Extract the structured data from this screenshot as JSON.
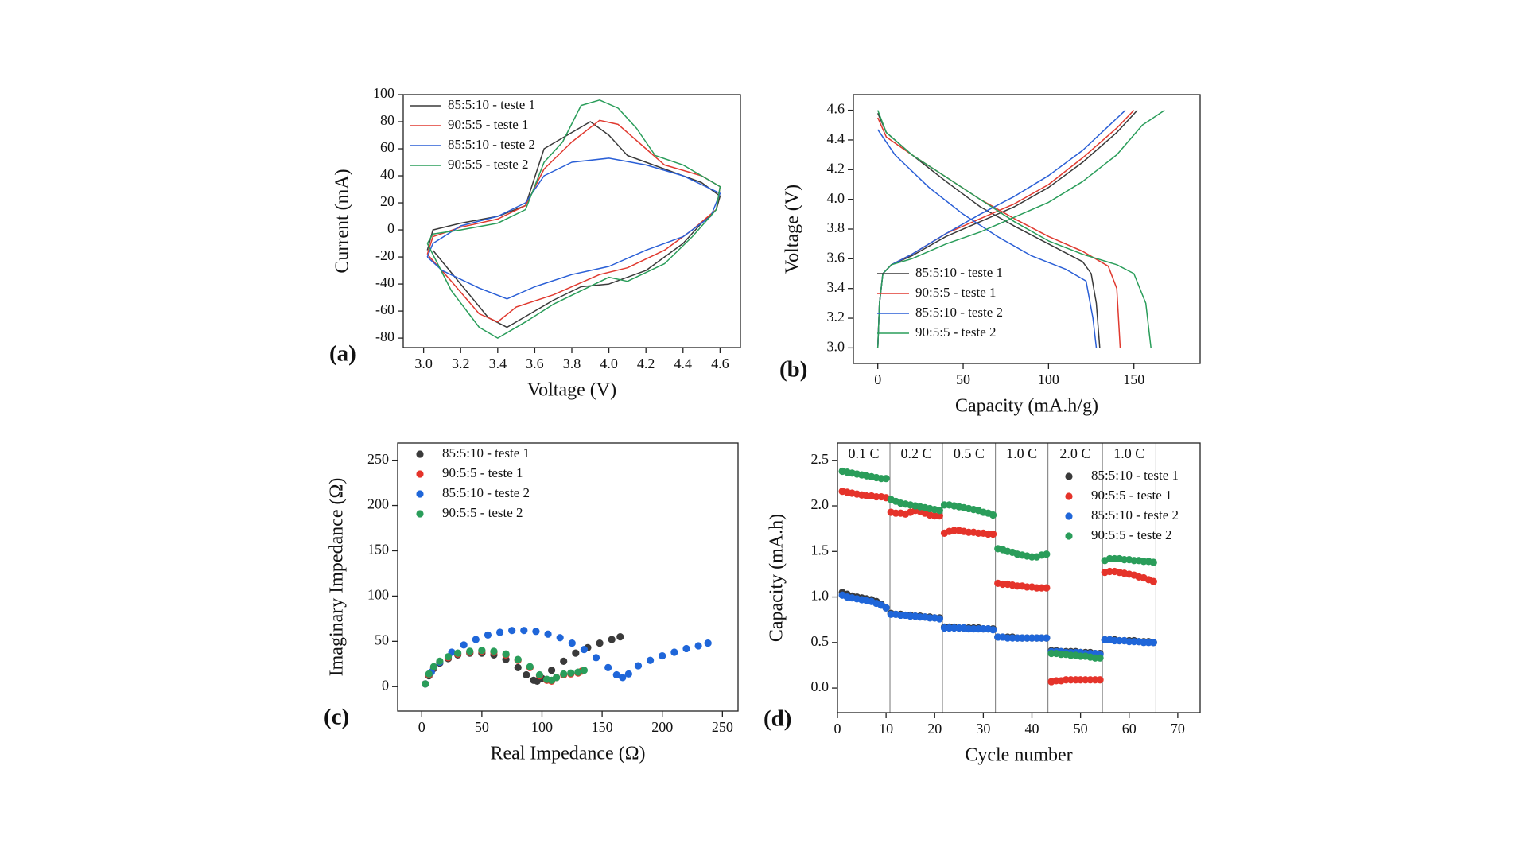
{
  "chart_data": [
    {
      "type": "line",
      "panel_label": "(a)",
      "x_label": "Voltage (V)",
      "y_label": "Current (mA)",
      "xlim": [
        2.89,
        4.71
      ],
      "ylim": [
        -87,
        100
      ],
      "xticks": [
        {
          "value": 3,
          "label": "3.0"
        },
        3.2,
        3.4,
        3.6,
        3.8,
        {
          "value": 4,
          "label": "4.0"
        },
        4.2,
        4.4,
        4.6
      ],
      "yticks": [
        -80,
        -60,
        -40,
        -20,
        0,
        20,
        40,
        60,
        80,
        100
      ],
      "legend": "upper left",
      "series": [
        {
          "name": "85:5:10 - teste 1",
          "color": "#3a3a3a",
          "x": [
            3.02,
            3.05,
            3.2,
            3.4,
            3.55,
            3.65,
            3.75,
            3.9,
            4.0,
            4.1,
            4.3,
            4.5,
            4.6,
            4.58,
            4.5,
            4.4,
            4.2,
            4.0,
            3.85,
            3.7,
            3.6,
            3.45,
            3.35,
            3.2,
            3.05
          ],
          "values": [
            -15,
            0,
            5,
            10,
            18,
            60,
            68,
            80,
            70,
            55,
            45,
            35,
            25,
            15,
            5,
            -10,
            -30,
            -40,
            -42,
            -52,
            -60,
            -72,
            -65,
            -40,
            -15
          ]
        },
        {
          "name": "90:5:5 - teste 1",
          "color": "#e03a30",
          "x": [
            3.02,
            3.05,
            3.2,
            3.4,
            3.55,
            3.65,
            3.8,
            3.95,
            4.05,
            4.2,
            4.3,
            4.5,
            4.6,
            4.58,
            4.45,
            4.3,
            4.1,
            3.95,
            3.7,
            3.5,
            3.4,
            3.3,
            3.15,
            3.02
          ],
          "values": [
            -18,
            -5,
            2,
            8,
            18,
            45,
            65,
            81,
            78,
            60,
            48,
            40,
            32,
            15,
            0,
            -15,
            -28,
            -33,
            -48,
            -57,
            -68,
            -62,
            -38,
            -18
          ]
        },
        {
          "name": "85:5:10 - teste 2",
          "color": "#2a5fd6",
          "x": [
            3.02,
            3.05,
            3.2,
            3.4,
            3.55,
            3.65,
            3.8,
            4.0,
            4.2,
            4.4,
            4.6,
            4.55,
            4.4,
            4.2,
            4.0,
            3.8,
            3.6,
            3.45,
            3.3,
            3.1,
            3.02
          ],
          "values": [
            -20,
            -10,
            3,
            10,
            20,
            40,
            50,
            53,
            48,
            40,
            27,
            10,
            -5,
            -15,
            -27,
            -33,
            -42,
            -51,
            -43,
            -30,
            -20
          ]
        },
        {
          "name": "90:5:5 - teste 2",
          "color": "#2a9d5a",
          "x": [
            3.02,
            3.05,
            3.2,
            3.4,
            3.55,
            3.65,
            3.75,
            3.85,
            3.95,
            4.05,
            4.15,
            4.25,
            4.4,
            4.6,
            4.58,
            4.45,
            4.3,
            4.1,
            4.0,
            3.85,
            3.7,
            3.55,
            3.4,
            3.3,
            3.15,
            3.02
          ],
          "values": [
            -10,
            -3,
            0,
            5,
            15,
            50,
            65,
            92,
            96,
            90,
            75,
            55,
            48,
            32,
            15,
            -5,
            -25,
            -38,
            -35,
            -45,
            -55,
            -68,
            -80,
            -72,
            -45,
            -10
          ]
        }
      ]
    },
    {
      "type": "line",
      "panel_label": "(b)",
      "x_label": "Capacity (mA.h/g)",
      "y_label": "Voltage (V)",
      "xlim": [
        -14.3,
        188.8
      ],
      "ylim": [
        2.895,
        4.705
      ],
      "xticks": [
        0,
        50,
        100,
        150
      ],
      "yticks": [
        {
          "value": 3,
          "label": "3.0"
        },
        3.2,
        3.4,
        3.6,
        3.8,
        {
          "value": 4,
          "label": "4.0"
        },
        4.2,
        4.4,
        4.6
      ],
      "legend": "lower left",
      "series": [
        {
          "name": "85:5:10 - teste 1",
          "color": "#3a3a3a",
          "x": [
            0,
            1,
            3,
            8,
            20,
            40,
            60,
            80,
            100,
            120,
            140,
            152,
            null,
            0,
            5,
            20,
            40,
            60,
            80,
            100,
            120,
            125,
            128,
            130
          ],
          "values": [
            3.0,
            3.3,
            3.5,
            3.56,
            3.62,
            3.75,
            3.85,
            3.95,
            4.08,
            4.25,
            4.45,
            4.6,
            null,
            4.58,
            4.45,
            4.3,
            4.12,
            3.95,
            3.82,
            3.7,
            3.58,
            3.5,
            3.3,
            3.0
          ]
        },
        {
          "name": "90:5:5 - teste 1",
          "color": "#e03a30",
          "x": [
            0,
            1,
            3,
            8,
            20,
            40,
            60,
            80,
            100,
            120,
            140,
            150,
            null,
            0,
            5,
            20,
            40,
            60,
            80,
            100,
            120,
            135,
            140,
            142
          ],
          "values": [
            3.0,
            3.3,
            3.5,
            3.56,
            3.63,
            3.77,
            3.87,
            3.97,
            4.1,
            4.28,
            4.48,
            4.6,
            null,
            4.55,
            4.42,
            4.3,
            4.15,
            4.0,
            3.87,
            3.75,
            3.65,
            3.55,
            3.4,
            3.0
          ]
        },
        {
          "name": "85:5:10 - teste 2",
          "color": "#2a5fd6",
          "x": [
            0,
            1,
            3,
            8,
            20,
            40,
            60,
            80,
            100,
            120,
            145,
            null,
            0,
            10,
            30,
            50,
            70,
            90,
            110,
            122,
            126,
            128
          ],
          "values": [
            3.0,
            3.3,
            3.5,
            3.56,
            3.63,
            3.77,
            3.9,
            4.02,
            4.16,
            4.33,
            4.6,
            null,
            4.47,
            4.3,
            4.08,
            3.9,
            3.75,
            3.62,
            3.53,
            3.45,
            3.2,
            3.0
          ]
        },
        {
          "name": "90:5:5 - teste 2",
          "color": "#2a9d5a",
          "x": [
            0,
            1,
            3,
            8,
            20,
            40,
            60,
            80,
            100,
            120,
            140,
            155,
            168,
            null,
            0,
            5,
            20,
            40,
            60,
            80,
            100,
            120,
            140,
            150,
            157,
            160
          ],
          "values": [
            3.0,
            3.3,
            3.5,
            3.56,
            3.6,
            3.7,
            3.78,
            3.88,
            3.98,
            4.12,
            4.3,
            4.5,
            4.6,
            null,
            4.6,
            4.45,
            4.3,
            4.15,
            4.0,
            3.85,
            3.72,
            3.63,
            3.56,
            3.5,
            3.3,
            3.0
          ]
        }
      ]
    },
    {
      "type": "scatter",
      "panel_label": "(c)",
      "x_label": "Real Impedance (Ω)",
      "y_label": "Imaginary Impedance (Ω)",
      "xlim": [
        -20,
        263
      ],
      "ylim": [
        -27,
        269
      ],
      "xticks": [
        0,
        50,
        100,
        150,
        200,
        250
      ],
      "yticks": [
        0,
        50,
        100,
        150,
        200,
        250
      ],
      "legend": "upper left",
      "series": [
        {
          "name": "85:5:10 - teste 1",
          "color": "#3a3a3a",
          "x": [
            3,
            6,
            10,
            15,
            22,
            30,
            40,
            50,
            60,
            70,
            80,
            87,
            93,
            96,
            100,
            108,
            118,
            128,
            138,
            148,
            158,
            165
          ],
          "values": [
            3,
            12,
            20,
            26,
            31,
            35,
            37,
            37,
            35,
            30,
            21,
            13,
            7,
            6,
            9,
            18,
            28,
            37,
            43,
            48,
            52,
            55
          ]
        },
        {
          "name": "90:5:5 - teste 1",
          "color": "#e5332a",
          "x": [
            3,
            6,
            10,
            15,
            22,
            30,
            40,
            50,
            60,
            70,
            80,
            90,
            98,
            104,
            108,
            112,
            118,
            124,
            130,
            133
          ],
          "values": [
            3,
            13,
            21,
            27,
            32,
            36,
            38,
            39,
            38,
            35,
            29,
            21,
            12,
            7,
            6,
            10,
            13,
            14,
            15,
            17
          ]
        },
        {
          "name": "85:5:10 - teste 2",
          "color": "#1f66d9",
          "x": [
            3,
            8,
            15,
            25,
            35,
            45,
            55,
            65,
            75,
            85,
            95,
            105,
            115,
            125,
            135,
            145,
            155,
            162,
            167,
            172,
            180,
            190,
            200,
            210,
            220,
            230,
            238
          ],
          "values": [
            3,
            16,
            27,
            38,
            46,
            52,
            57,
            60,
            62,
            62,
            61,
            58,
            54,
            48,
            41,
            32,
            21,
            13,
            10,
            14,
            23,
            29,
            34,
            38,
            42,
            45,
            48
          ]
        },
        {
          "name": "90:5:5 - teste 2",
          "color": "#2a9d5a",
          "x": [
            3,
            6,
            10,
            15,
            22,
            30,
            40,
            50,
            60,
            70,
            80,
            90,
            98,
            104,
            108,
            112,
            118,
            124,
            130,
            135
          ],
          "values": [
            3,
            14,
            22,
            28,
            33,
            37,
            39,
            40,
            39,
            36,
            30,
            22,
            13,
            8,
            7,
            10,
            14,
            15,
            16,
            18
          ]
        }
      ]
    },
    {
      "type": "scatter",
      "panel_label": "(d)",
      "x_label": "Cycle number",
      "y_label": "Capacity (mA.h)",
      "xlim": [
        0,
        74.6
      ],
      "ylim": [
        -0.27,
        2.69
      ],
      "xticks": [
        0,
        10,
        20,
        30,
        40,
        50,
        60,
        70
      ],
      "yticks": [
        {
          "value": 0,
          "label": "0.0"
        },
        0.5,
        {
          "value": 1,
          "label": "1.0"
        },
        1.5,
        {
          "value": 2,
          "label": "2.0"
        },
        2.5
      ],
      "legend": "upper right",
      "dividers": [
        10.8,
        21.6,
        32.5,
        43.3,
        54.5,
        65.5
      ],
      "rate_labels": [
        "0.1 C",
        "0.2 C",
        "0.5 C",
        "1.0 C",
        "2.0 C",
        "1.0 C"
      ],
      "x": [
        1,
        2,
        3,
        4,
        5,
        6,
        7,
        8,
        9,
        10,
        11,
        12,
        13,
        14,
        15,
        16,
        17,
        18,
        19,
        20,
        21,
        22,
        23,
        24,
        25,
        26,
        27,
        28,
        29,
        30,
        31,
        32,
        33,
        34,
        35,
        36,
        37,
        38,
        39,
        40,
        41,
        42,
        43,
        44,
        45,
        46,
        47,
        48,
        49,
        50,
        51,
        52,
        53,
        54,
        55,
        56,
        57,
        58,
        59,
        60,
        61,
        62,
        63,
        64,
        65
      ],
      "series": [
        {
          "name": "85:5:10 - teste 1",
          "color": "#3a3a3a",
          "values": [
            1.05,
            1.03,
            1.01,
            1.0,
            0.99,
            0.98,
            0.97,
            0.95,
            0.92,
            0.88,
            0.82,
            0.81,
            0.81,
            0.8,
            0.8,
            0.79,
            0.79,
            0.78,
            0.78,
            0.77,
            0.77,
            0.67,
            0.67,
            0.67,
            0.66,
            0.66,
            0.66,
            0.66,
            0.66,
            0.65,
            0.65,
            0.65,
            0.56,
            0.56,
            0.56,
            0.56,
            0.55,
            0.55,
            0.55,
            0.55,
            0.55,
            0.55,
            0.55,
            0.41,
            0.41,
            0.4,
            0.4,
            0.4,
            0.4,
            0.39,
            0.39,
            0.39,
            0.38,
            0.38,
            0.53,
            0.53,
            0.53,
            0.52,
            0.52,
            0.52,
            0.52,
            0.51,
            0.51,
            0.51,
            0.5
          ]
        },
        {
          "name": "90:5:5 - teste 1",
          "color": "#e5332a",
          "values": [
            2.16,
            2.15,
            2.14,
            2.13,
            2.12,
            2.11,
            2.11,
            2.1,
            2.1,
            2.09,
            1.93,
            1.92,
            1.92,
            1.91,
            1.93,
            1.95,
            1.94,
            1.92,
            1.9,
            1.89,
            1.89,
            1.7,
            1.72,
            1.73,
            1.73,
            1.72,
            1.71,
            1.71,
            1.7,
            1.7,
            1.69,
            1.69,
            1.15,
            1.14,
            1.14,
            1.13,
            1.12,
            1.12,
            1.11,
            1.11,
            1.1,
            1.1,
            1.1,
            0.07,
            0.08,
            0.08,
            0.09,
            0.09,
            0.09,
            0.09,
            0.09,
            0.09,
            0.09,
            0.09,
            1.27,
            1.28,
            1.28,
            1.27,
            1.26,
            1.25,
            1.24,
            1.22,
            1.21,
            1.19,
            1.17
          ]
        },
        {
          "name": "85:5:10 - teste 2",
          "color": "#1f66d9",
          "values": [
            1.02,
            1.0,
            0.99,
            0.98,
            0.97,
            0.96,
            0.95,
            0.93,
            0.91,
            0.88,
            0.81,
            0.81,
            0.8,
            0.8,
            0.79,
            0.79,
            0.78,
            0.78,
            0.77,
            0.77,
            0.76,
            0.66,
            0.66,
            0.66,
            0.66,
            0.66,
            0.65,
            0.65,
            0.65,
            0.65,
            0.65,
            0.64,
            0.56,
            0.56,
            0.55,
            0.55,
            0.55,
            0.55,
            0.55,
            0.55,
            0.55,
            0.55,
            0.55,
            0.4,
            0.4,
            0.4,
            0.39,
            0.39,
            0.39,
            0.39,
            0.38,
            0.38,
            0.38,
            0.37,
            0.53,
            0.53,
            0.52,
            0.52,
            0.52,
            0.51,
            0.51,
            0.51,
            0.5,
            0.5,
            0.5
          ]
        },
        {
          "name": "90:5:5 - teste 2",
          "color": "#2a9d5a",
          "values": [
            2.38,
            2.37,
            2.36,
            2.35,
            2.34,
            2.33,
            2.32,
            2.31,
            2.3,
            2.3,
            2.07,
            2.05,
            2.03,
            2.02,
            2.01,
            2.0,
            1.99,
            1.98,
            1.97,
            1.96,
            1.95,
            2.01,
            2.01,
            2.0,
            1.99,
            1.98,
            1.97,
            1.96,
            1.95,
            1.93,
            1.92,
            1.9,
            1.53,
            1.52,
            1.5,
            1.49,
            1.47,
            1.46,
            1.45,
            1.44,
            1.44,
            1.46,
            1.47,
            0.38,
            0.38,
            0.37,
            0.37,
            0.36,
            0.36,
            0.35,
            0.35,
            0.34,
            0.33,
            0.33,
            1.4,
            1.42,
            1.42,
            1.42,
            1.41,
            1.41,
            1.4,
            1.4,
            1.39,
            1.39,
            1.38
          ]
        }
      ]
    }
  ]
}
